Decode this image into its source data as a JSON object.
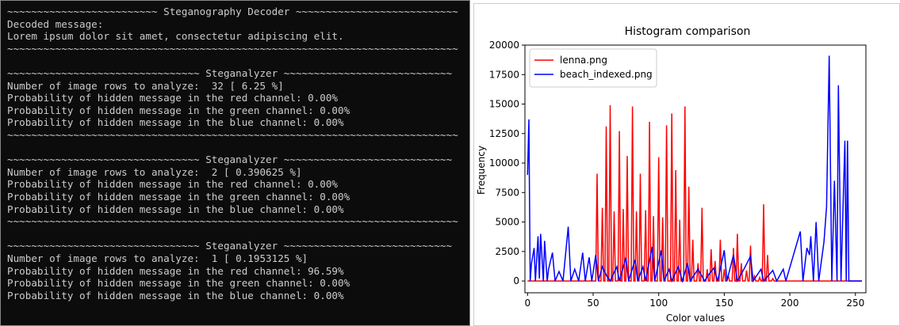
{
  "terminal": {
    "sections": [
      [
        "~~~~~~~~~~~~~~~~~~~~~~~~~ Steganography Decoder ~~~~~~~~~~~~~~~~~~~~~~~~~~~",
        "Decoded message:",
        "Lorem ipsum dolor sit amet, consectetur adipiscing elit.",
        "~~~~~~~~~~~~~~~~~~~~~~~~~~~~~~~~~~~~~~~~~~~~~~~~~~~~~~~~~~~~~~~~~~~~~~~~~~~"
      ],
      [
        "~~~~~~~~~~~~~~~~~~~~~~~~~~~~~~~~ Steganalyzer ~~~~~~~~~~~~~~~~~~~~~~~~~~~~",
        "Number of image rows to analyze:  32 [ 6.25 %]",
        "Probability of hidden message in the red channel: 0.00%",
        "Probability of hidden message in the green channel: 0.00%",
        "Probability of hidden message in the blue channel: 0.00%",
        "~~~~~~~~~~~~~~~~~~~~~~~~~~~~~~~~~~~~~~~~~~~~~~~~~~~~~~~~~~~~~~~~~~~~~~~~~~~"
      ],
      [
        "~~~~~~~~~~~~~~~~~~~~~~~~~~~~~~~~ Steganalyzer ~~~~~~~~~~~~~~~~~~~~~~~~~~~~",
        "Number of image rows to analyze:  2 [ 0.390625 %]",
        "Probability of hidden message in the red channel: 0.00%",
        "Probability of hidden message in the green channel: 0.00%",
        "Probability of hidden message in the blue channel: 0.00%",
        "~~~~~~~~~~~~~~~~~~~~~~~~~~~~~~~~~~~~~~~~~~~~~~~~~~~~~~~~~~~~~~~~~~~~~~~~~~~"
      ],
      [
        "~~~~~~~~~~~~~~~~~~~~~~~~~~~~~~~~ Steganalyzer ~~~~~~~~~~~~~~~~~~~~~~~~~~~~",
        "Number of image rows to analyze:  1 [ 0.1953125 %]",
        "Probability of hidden message in the red channel: 96.59%",
        "Probability of hidden message in the green channel: 0.00%",
        "Probability of hidden message in the blue channel: 0.00%"
      ]
    ]
  },
  "chart_data": {
    "type": "line",
    "title": "Histogram comparison",
    "x_label": "Color values",
    "y_label": "Frequency",
    "xlim": [
      -2,
      258
    ],
    "xticks": [
      0,
      50,
      100,
      150,
      200,
      250
    ],
    "ylim": [
      -1000,
      20000
    ],
    "yticks": [
      0,
      2500,
      5000,
      7500,
      10000,
      12500,
      15000,
      17500,
      20000
    ],
    "legend": "upper left",
    "series": [
      {
        "name": "lenna.png",
        "color": "#ff0000",
        "x": [
          0,
          52,
          53,
          54,
          56,
          57,
          58,
          59,
          60,
          61,
          62,
          63,
          64,
          65,
          66,
          67,
          69,
          70,
          71,
          72,
          73,
          74,
          75,
          76,
          77,
          79,
          80,
          81,
          82,
          83,
          84,
          85,
          86,
          87,
          89,
          90,
          91,
          92,
          93,
          94,
          95,
          96,
          97,
          99,
          100,
          101,
          102,
          103,
          104,
          105,
          106,
          107,
          109,
          110,
          111,
          112,
          113,
          114,
          115,
          116,
          117,
          119,
          120,
          121,
          122,
          123,
          124,
          125,
          126,
          127,
          129,
          130,
          131,
          132,
          133,
          134,
          136,
          137,
          138,
          139,
          140,
          141,
          142,
          143,
          144,
          146,
          147,
          148,
          149,
          150,
          151,
          152,
          153,
          154,
          156,
          157,
          158,
          159,
          160,
          161,
          162,
          163,
          164,
          166,
          167,
          168,
          169,
          170,
          171,
          172,
          173,
          174,
          176,
          177,
          178,
          179,
          180,
          181,
          182,
          183,
          184,
          186,
          187,
          188,
          255
        ],
        "values": [
          0,
          0,
          9100,
          0,
          0,
          6200,
          0,
          0,
          13100,
          0,
          0,
          14900,
          0,
          0,
          5900,
          0,
          0,
          12700,
          0,
          0,
          6100,
          0,
          0,
          10600,
          0,
          0,
          14800,
          0,
          0,
          5900,
          0,
          0,
          9100,
          0,
          0,
          6000,
          0,
          0,
          13500,
          0,
          0,
          5500,
          0,
          0,
          10500,
          0,
          0,
          5400,
          0,
          0,
          13200,
          0,
          0,
          14200,
          0,
          0,
          9400,
          0,
          0,
          5200,
          0,
          0,
          14800,
          0,
          0,
          8000,
          0,
          0,
          3500,
          0,
          0,
          1500,
          0,
          0,
          6200,
          0,
          0,
          1000,
          0,
          0,
          2700,
          0,
          0,
          1700,
          0,
          0,
          3500,
          0,
          0,
          1000,
          0,
          0,
          500,
          0,
          0,
          2800,
          0,
          0,
          4000,
          0,
          0,
          1500,
          0,
          0,
          900,
          0,
          0,
          3000,
          0,
          0,
          400,
          0,
          0,
          300,
          0,
          0,
          6500,
          0,
          0,
          2200,
          0,
          0,
          200,
          0,
          0
        ]
      },
      {
        "name": "beach_indexed.png",
        "color": "#0000ff",
        "x": [
          0,
          1,
          2,
          3,
          5,
          6,
          8,
          9,
          10,
          12,
          13,
          15,
          16,
          19,
          21,
          24,
          27,
          31,
          33,
          36,
          39,
          42,
          44,
          47,
          49,
          52,
          54,
          57,
          60,
          63,
          68,
          70,
          75,
          77,
          82,
          84,
          88,
          90,
          95,
          97,
          102,
          104,
          108,
          110,
          115,
          118,
          122,
          124,
          130,
          135,
          138,
          142,
          145,
          150,
          152,
          157,
          160,
          165,
          170,
          172,
          178,
          180,
          187,
          190,
          195,
          197,
          208,
          210,
          213,
          215,
          216,
          218,
          220,
          222,
          226,
          228,
          230,
          232,
          234,
          236,
          237,
          239,
          242,
          243,
          244,
          245,
          255
        ],
        "values": [
          9000,
          13700,
          0,
          1500,
          2800,
          0,
          3800,
          200,
          4000,
          0,
          3400,
          0,
          1000,
          2400,
          0,
          800,
          0,
          4600,
          0,
          1000,
          0,
          2400,
          0,
          2000,
          0,
          2200,
          0,
          1200,
          500,
          0,
          1200,
          0,
          2000,
          0,
          1800,
          0,
          1200,
          0,
          2900,
          0,
          2600,
          0,
          1000,
          0,
          1200,
          0,
          1500,
          0,
          1000,
          0,
          500,
          1100,
          0,
          2600,
          0,
          2200,
          0,
          1000,
          2100,
          0,
          1000,
          0,
          900,
          0,
          1000,
          0,
          4200,
          0,
          2800,
          2200,
          3800,
          0,
          5000,
          0,
          3300,
          6300,
          19100,
          0,
          8500,
          0,
          16600,
          0,
          11900,
          0,
          11900,
          0,
          0
        ]
      }
    ]
  }
}
